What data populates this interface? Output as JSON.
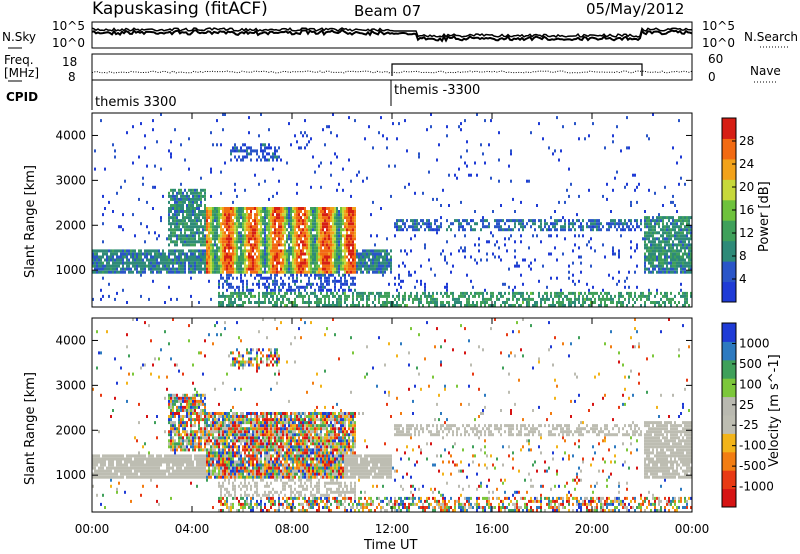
{
  "header": {
    "title": "Kapuskasing (fitACF)",
    "beam": "Beam 07",
    "date": "05/May/2012"
  },
  "top_panel": {
    "left_label": "N.Sky",
    "right_label": "N.Search",
    "left_ticks": [
      "10^5",
      "10^0"
    ],
    "right_ticks": [
      "10^5",
      "10^0"
    ]
  },
  "freq_panel": {
    "left_label_line1": "Freq.",
    "left_label_line2": "[MHz]",
    "right_label": "Nave",
    "left_ticks": [
      "18",
      "8"
    ],
    "right_ticks": [
      "60",
      "0"
    ]
  },
  "cpid_panel": {
    "label": "CPID",
    "segments": [
      {
        "label": "themis 3300"
      },
      {
        "label": "themis -3300"
      }
    ]
  },
  "colors": {
    "power": [
      "#1f3bd6",
      "#2a55c8",
      "#2e8a78",
      "#3fa05a",
      "#6ec23c",
      "#c7d83a",
      "#f2a21a",
      "#f26a12",
      "#d61e14"
    ],
    "velocity": [
      "#1f3bd6",
      "#2d7ac0",
      "#3fa05a",
      "#7cc73a",
      "#b9b9b0",
      "#bdbdb2",
      "#f2b41a",
      "#f27d12",
      "#e83a14",
      "#d61414"
    ],
    "groundscatter": "#bdbdb2"
  },
  "chart_data": {
    "type": "heatmap",
    "x_label": "Time UT",
    "x_ticks": [
      "00:00",
      "04:00",
      "08:00",
      "12:00",
      "16:00",
      "20:00",
      "00:00"
    ],
    "xlim": [
      "00:00",
      "24:00"
    ],
    "panels": [
      {
        "name": "power",
        "ylabel": "Slant Range [km]",
        "yticks": [
          "1000",
          "2000",
          "3000",
          "4000"
        ],
        "ylim": [
          180,
          4500
        ],
        "colorbar_label": "Power [dB]",
        "colorbar_ticks": [
          "4",
          "8",
          "12",
          "16",
          "20",
          "24",
          "28"
        ],
        "colorbar_range": [
          0,
          30
        ]
      },
      {
        "name": "velocity",
        "ylabel": "Slant Range [km]",
        "yticks": [
          "1000",
          "2000",
          "3000",
          "4000"
        ],
        "ylim": [
          180,
          4500
        ],
        "colorbar_label": "Velocity [m s^-1]",
        "colorbar_ticks": [
          "1000",
          "500",
          "100",
          "25",
          "-25",
          "-100",
          "-500",
          "-1000"
        ]
      }
    ]
  }
}
